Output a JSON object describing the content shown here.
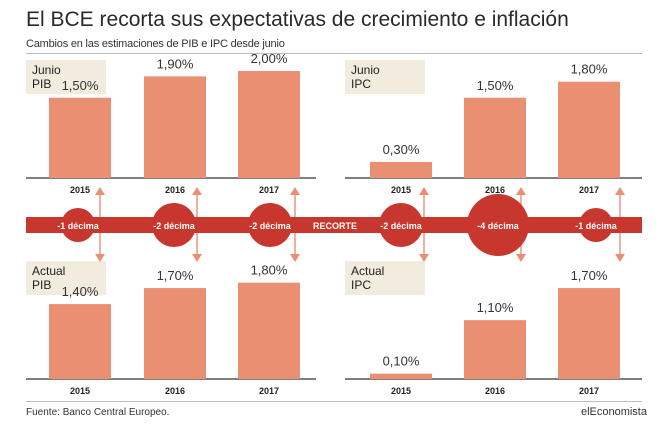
{
  "title": "El BCE recorta sus expectativas de crecimiento e inflación",
  "subtitle": "Cambios en las estimaciones de PIB e IPC desde junio",
  "source": "Fuente: Banco Central Europeo.",
  "brand": "elEconomista",
  "colors": {
    "bar": "#eb8f73",
    "band": "#c8372d",
    "arrow": "#eb8f73",
    "label_bg": "#f1ecdd",
    "axis": "#333333"
  },
  "chart_data": [
    {
      "type": "bar",
      "title": "Junio PIB",
      "title_lines": [
        "Junio",
        "PIB"
      ],
      "categories": [
        "2015",
        "2016",
        "2017"
      ],
      "values": [
        1.5,
        1.9,
        2.0
      ],
      "value_labels": [
        "1,50%",
        "1,90%",
        "2,00%"
      ],
      "ylim": [
        0,
        2.2
      ]
    },
    {
      "type": "bar",
      "title": "Junio IPC",
      "title_lines": [
        "Junio",
        "IPC"
      ],
      "categories": [
        "2015",
        "2016",
        "2017"
      ],
      "values": [
        0.3,
        1.5,
        1.8
      ],
      "value_labels": [
        "0,30%",
        "1,50%",
        "1,80%"
      ],
      "ylim": [
        0,
        2.2
      ]
    },
    {
      "type": "bar",
      "title": "Actual PIB",
      "title_lines": [
        "Actual",
        "PIB"
      ],
      "categories": [
        "2015",
        "2016",
        "2017"
      ],
      "values": [
        1.4,
        1.7,
        1.8
      ],
      "value_labels": [
        "1,40%",
        "1,70%",
        "1,80%"
      ],
      "ylim": [
        0,
        2.2
      ]
    },
    {
      "type": "bar",
      "title": "Actual IPC",
      "title_lines": [
        "Actual",
        "IPC"
      ],
      "categories": [
        "2015",
        "2016",
        "2017"
      ],
      "values": [
        0.1,
        1.1,
        1.7
      ],
      "value_labels": [
        "0,10%",
        "1,10%",
        "1,70%"
      ],
      "ylim": [
        0,
        2.2
      ]
    }
  ],
  "band": {
    "label": "RECORTE",
    "cuts": [
      {
        "label": "-1 décima",
        "value": -1
      },
      {
        "label": "-2 décima",
        "value": -2
      },
      {
        "label": "-2 décima",
        "value": -2
      },
      {
        "label": "-2 décima",
        "value": -2
      },
      {
        "label": "-4 décima",
        "value": -4
      },
      {
        "label": "-1 décima",
        "value": -1
      }
    ]
  }
}
